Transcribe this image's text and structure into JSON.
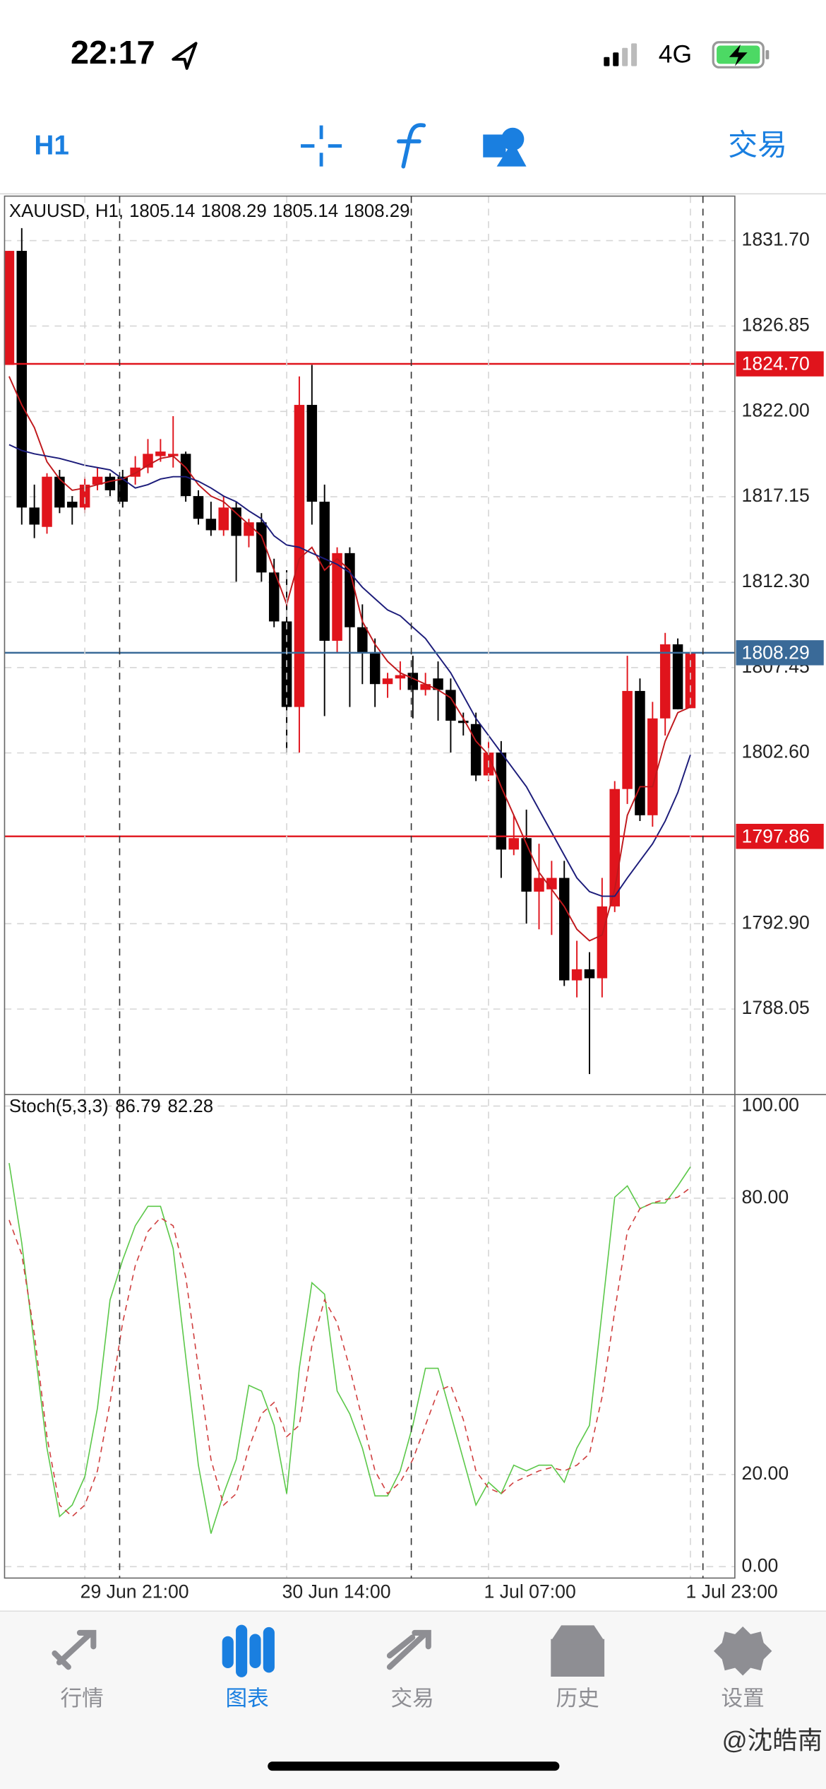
{
  "status_bar": {
    "time": "22:17",
    "network": "4G"
  },
  "toolbar": {
    "timeframe": "H1",
    "trade": "交易"
  },
  "chart_data": [
    {
      "type": "candlestick",
      "symbol": "XAUUSD, H1,",
      "open": [
        1824.64,
        1831.12,
        1816.54,
        1815.44,
        1818.29,
        1816.87,
        1816.54,
        1817.84,
        1818.29,
        1818.29,
        1818.29,
        1818.81,
        1819.46,
        1819.46,
        1819.59,
        1817.19,
        1815.9,
        1815.25,
        1816.54,
        1814.93,
        1815.7,
        1812.85,
        1810.07,
        1805.21,
        1822.37,
        1816.87,
        1808.97,
        1813.95,
        1809.74,
        1808.32,
        1806.51,
        1806.83,
        1807.15,
        1806.18,
        1806.83,
        1806.18,
        1804.43,
        1804.24,
        1801.32,
        1802.62,
        1797.11,
        1797.76,
        1794.72,
        1794.85,
        1795.5,
        1789.68,
        1790.31,
        1789.8,
        1793.88,
        1800.55,
        1806.12,
        1799.06,
        1804.56,
        1808.77,
        1805.14
      ],
      "high": [
        1831.12,
        1832.41,
        1817.84,
        1818.49,
        1818.68,
        1817.19,
        1818.29,
        1818.81,
        1818.49,
        1818.68,
        1819.46,
        1820.43,
        1820.43,
        1821.73,
        1819.72,
        1817.52,
        1816.87,
        1817.19,
        1816.87,
        1815.9,
        1816.22,
        1813.63,
        1812.98,
        1823.99,
        1824.64,
        1817.84,
        1814.28,
        1814.28,
        1811.04,
        1809.1,
        1807.15,
        1807.8,
        1808.12,
        1807.15,
        1807.8,
        1806.83,
        1804.89,
        1804.89,
        1803.27,
        1803.27,
        1799.06,
        1799.38,
        1797.44,
        1796.47,
        1796.47,
        1791.93,
        1791.28,
        1795.5,
        1801.0,
        1808.12,
        1806.83,
        1805.5,
        1809.42,
        1809.1,
        1808.29
      ],
      "low": [
        1824.64,
        1815.57,
        1814.8,
        1815.05,
        1816.22,
        1815.57,
        1816.22,
        1817.52,
        1817.19,
        1816.54,
        1817.84,
        1818.49,
        1819.14,
        1818.81,
        1816.87,
        1815.57,
        1814.93,
        1814.93,
        1812.33,
        1814.28,
        1812.33,
        1809.74,
        1802.62,
        1802.62,
        1815.57,
        1804.69,
        1808.32,
        1805.21,
        1806.51,
        1805.21,
        1805.73,
        1806.18,
        1804.56,
        1805.86,
        1804.43,
        1802.62,
        1803.59,
        1801.0,
        1801.0,
        1795.5,
        1796.79,
        1792.9,
        1792.58,
        1792.26,
        1789.36,
        1788.71,
        1784.36,
        1788.71,
        1793.56,
        1799.7,
        1798.73,
        1798.41,
        1803.59,
        1805.08,
        1805.14
      ],
      "close": [
        1831.12,
        1816.54,
        1815.57,
        1818.29,
        1816.54,
        1816.54,
        1817.84,
        1818.29,
        1817.52,
        1816.87,
        1818.81,
        1819.59,
        1819.72,
        1819.59,
        1817.19,
        1815.9,
        1815.25,
        1816.54,
        1814.93,
        1815.7,
        1812.85,
        1810.07,
        1805.21,
        1822.37,
        1816.87,
        1808.97,
        1813.95,
        1809.74,
        1808.32,
        1806.51,
        1806.83,
        1807.02,
        1806.18,
        1806.51,
        1806.18,
        1804.43,
        1804.3,
        1801.32,
        1802.62,
        1797.11,
        1797.76,
        1794.72,
        1795.5,
        1795.5,
        1789.68,
        1790.31,
        1789.8,
        1793.88,
        1800.55,
        1806.12,
        1799.06,
        1804.56,
        1808.77,
        1805.08,
        1808.29
      ],
      "up_color": "#e0141c",
      "down_color": "#000000",
      "series": [
        {
          "color": "#c0181c",
          "values": [
            1823.99,
            1822.37,
            1821.08,
            1819.14,
            1818.16,
            1817.52,
            1817.65,
            1817.84,
            1818.03,
            1818.16,
            1818.49,
            1818.94,
            1819.33,
            1819.46,
            1818.81,
            1817.84,
            1817.19,
            1816.87,
            1816.22,
            1815.57,
            1814.93,
            1812.98,
            1811.04,
            1813.63,
            1814.28,
            1812.98,
            1813.63,
            1812.98,
            1810.07,
            1808.77,
            1807.8,
            1807.15,
            1806.83,
            1806.51,
            1806.18,
            1805.73,
            1804.56,
            1803.27,
            1802.49,
            1800.68,
            1799.06,
            1797.44,
            1795.82,
            1794.85,
            1793.88,
            1792.58,
            1791.93,
            1792.26,
            1794.85,
            1799.06,
            1800.68,
            1800.68,
            1803.27,
            1804.89,
            1805.21
          ]
        },
        {
          "color": "#1c1c7a",
          "values": [
            1820.11,
            1819.78,
            1819.59,
            1819.46,
            1819.33,
            1819.14,
            1818.94,
            1818.81,
            1818.68,
            1818.16,
            1817.65,
            1817.84,
            1818.16,
            1818.29,
            1818.29,
            1818.03,
            1817.65,
            1817.19,
            1816.87,
            1816.35,
            1815.9,
            1814.93,
            1814.41,
            1814.28,
            1813.95,
            1813.63,
            1813.31,
            1812.85,
            1812.01,
            1811.36,
            1810.72,
            1810.39,
            1809.74,
            1809.1,
            1808.12,
            1807.15,
            1805.86,
            1804.56,
            1803.59,
            1802.62,
            1801.65,
            1800.68,
            1799.38,
            1798.09,
            1796.79,
            1795.5,
            1794.72,
            1794.46,
            1794.46,
            1795.5,
            1796.47,
            1797.44,
            1798.73,
            1800.35,
            1802.49
          ]
        }
      ],
      "ylim": [
        1783.19,
        1834.23
      ],
      "yticks": [
        {
          "value": 1831.7,
          "label": "1831.70"
        },
        1826.85,
        {
          "value": 1822,
          "label": "1822.00"
        },
        1817.15,
        {
          "value": 1812.3,
          "label": "1812.30"
        },
        1807.45,
        {
          "value": 1802.6,
          "label": "1802.60"
        },
        {
          "value": 1792.9,
          "label": "1792.90"
        },
        1788.05
      ],
      "grid": true,
      "price_lines": [
        {
          "value": 1824.7,
          "label": "1824.70",
          "color": "#e0141c"
        },
        {
          "value": 1797.86,
          "label": "1797.86",
          "color": "#e0141c"
        },
        {
          "value": 1808.29,
          "label": "1808.29",
          "color": "#3a6a98"
        }
      ]
    },
    {
      "type": "line",
      "title": "Stoch(5,3,3)",
      "categories": [
        null,
        null,
        null,
        null,
        null,
        null,
        "29 Jun 21:00",
        null,
        null,
        null,
        null,
        null,
        null,
        null,
        null,
        null,
        null,
        null,
        null,
        null,
        null,
        null,
        "30 Jun 14:00",
        null,
        null,
        null,
        null,
        null,
        null,
        null,
        null,
        null,
        null,
        null,
        null,
        null,
        null,
        null,
        "1 Jul 07:00",
        null,
        null,
        null,
        null,
        null,
        null,
        null,
        null,
        null,
        null,
        null,
        null,
        null,
        null,
        null,
        "1 Jul 23:00"
      ],
      "series": [
        {
          "color": "#5cc84a",
          "dash": false,
          "values": [
            87.62,
            70.3,
            48.02,
            25.74,
            10.89,
            13.37,
            19.55,
            34.41,
            57.92,
            66.58,
            74.01,
            78.22,
            78.22,
            69.06,
            45.54,
            22.03,
            7.18,
            15.84,
            23.27,
            39.36,
            38.12,
            30.69,
            15.84,
            43.07,
            61.63,
            59.16,
            38.12,
            33.17,
            25.74,
            15.35,
            15.35,
            20.79,
            30.69,
            43.07,
            43.07,
            33.17,
            23.27,
            13.37,
            18.32,
            15.84,
            22.03,
            20.79,
            22.03,
            22.03,
            18.32,
            25.74,
            30.69,
            55.45,
            80.2,
            82.67,
            77.72,
            78.96,
            78.96,
            82.67,
            86.79
          ]
        },
        {
          "color": "#d04040",
          "dash": true,
          "values": [
            75.25,
            67.82,
            50.5,
            28.22,
            13.37,
            10.89,
            13.37,
            20.79,
            35.64,
            52.97,
            65.35,
            72.77,
            75.74,
            74.01,
            62.87,
            43.07,
            23.27,
            13.37,
            15.84,
            25.74,
            33.17,
            35.64,
            28.22,
            30.69,
            48.02,
            57.92,
            52.97,
            43.07,
            31.93,
            20.79,
            15.84,
            18.32,
            23.27,
            30.69,
            38.12,
            39.36,
            31.93,
            20.79,
            17.08,
            15.84,
            18.32,
            19.55,
            20.79,
            21.53,
            20.79,
            22.03,
            24.5,
            36.88,
            55.45,
            72.77,
            77.72,
            78.96,
            79.7,
            80.2,
            82.28
          ]
        }
      ],
      "ylim": [
        -2.48,
        102.48
      ],
      "yticks": [
        {
          "value": 100,
          "label": "100.00"
        },
        {
          "value": 80,
          "label": "80.00"
        },
        {
          "value": 20,
          "label": "20.00"
        },
        {
          "value": 0,
          "label": "0.00"
        }
      ],
      "grid": true
    }
  ],
  "tabs": [
    "行情",
    "图表",
    "交易",
    "历史",
    "设置"
  ],
  "active_tab": 1,
  "watermark": "@沈皓南"
}
